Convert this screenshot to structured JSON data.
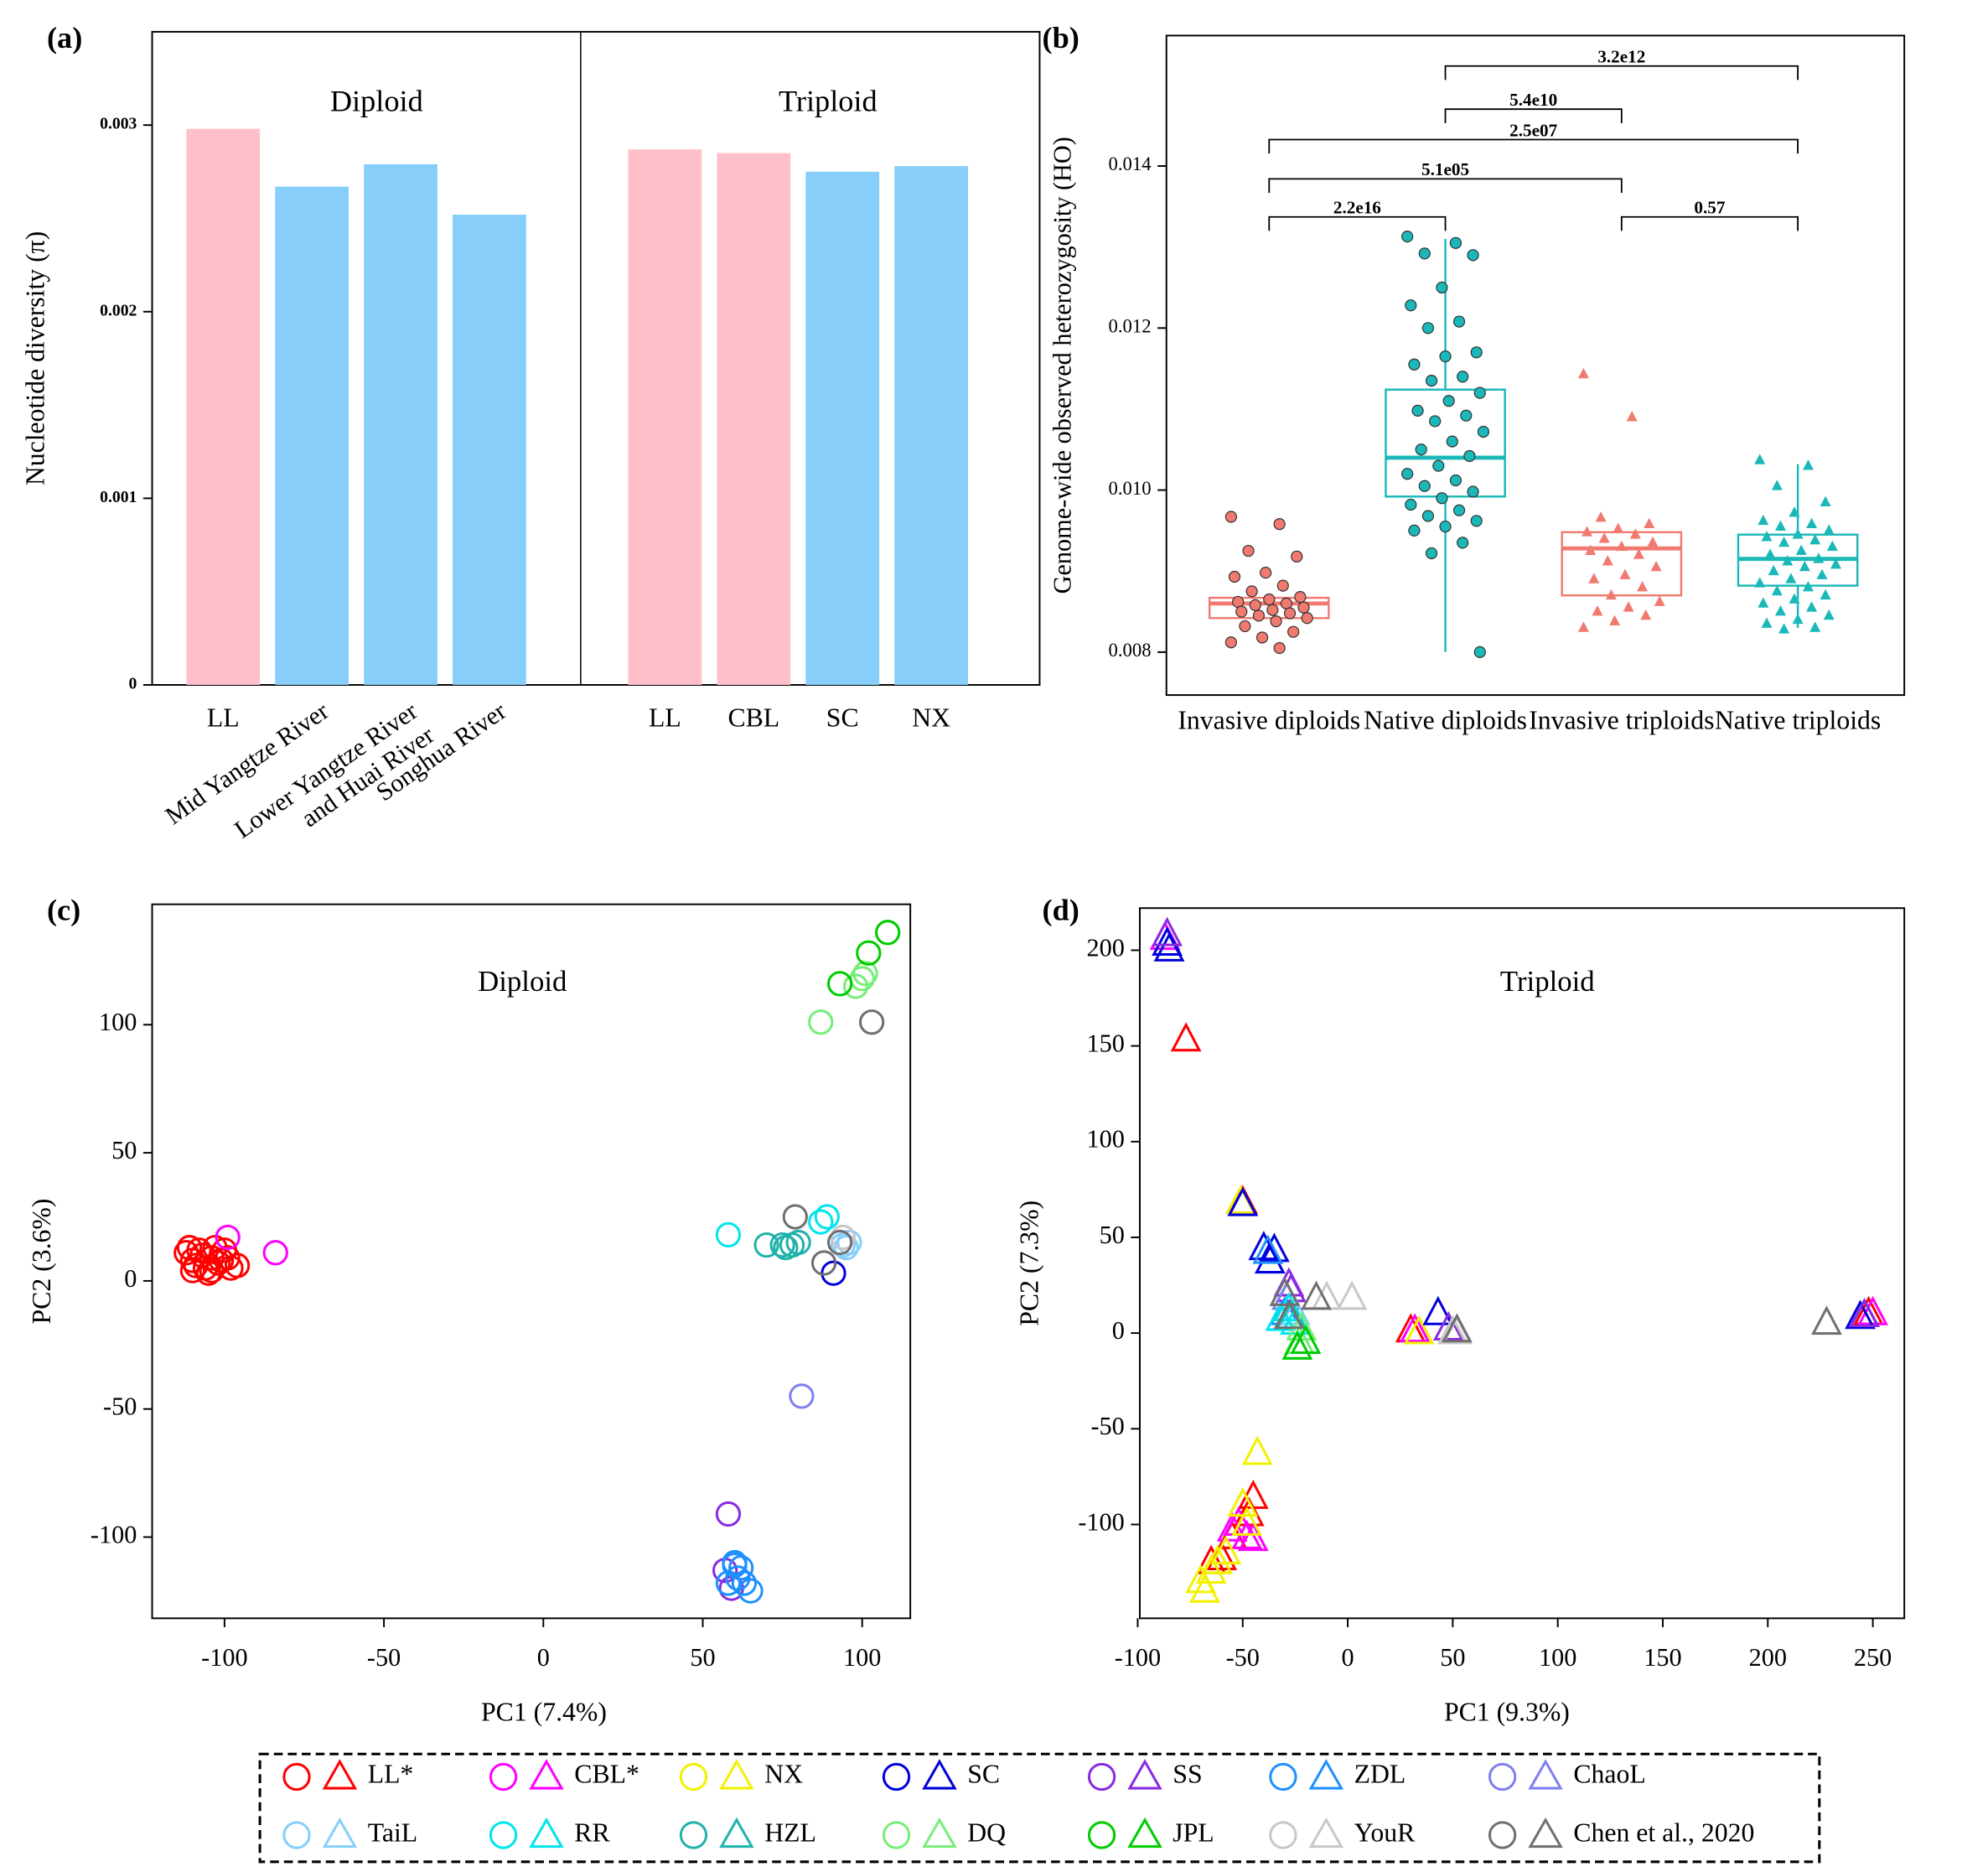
{
  "chart_data": [
    {
      "type": "grouped_bar",
      "panel_label": "(a)",
      "y_label": "Nucleotide diversity (π)",
      "ylim": [
        0,
        0.0035
      ],
      "yticks": [
        0,
        0.001,
        0.002,
        0.003
      ],
      "groups": [
        {
          "name": "Diploid",
          "categories": [
            "LL",
            "Mid Yangtze River",
            "Lower Yangtze River\nand Huai River",
            "Songhua River"
          ],
          "values": [
            0.00298,
            0.00267,
            0.00279,
            0.00252
          ],
          "colors": [
            "#ffc0cb",
            "#87cefa",
            "#87cefa",
            "#87cefa"
          ]
        },
        {
          "name": "Triploid",
          "categories": [
            "LL",
            "CBL",
            "SC",
            "NX"
          ],
          "values": [
            0.00287,
            0.00285,
            0.00275,
            0.00278
          ],
          "colors": [
            "#ffc0cb",
            "#ffc0cb",
            "#87cefa",
            "#87cefa"
          ]
        }
      ]
    },
    {
      "type": "box",
      "panel_label": "(b)",
      "y_label": "Genome-wide observed heterozygosity (HO)",
      "ylim": [
        0.00747,
        0.01561
      ],
      "yticks": [
        0.008,
        {
          "value": 0.01,
          "label": "0.010"
        },
        0.012,
        0.014
      ],
      "categories": [
        "Invasive diploids",
        "Native diploids",
        "Invasive triploids",
        "Native triploids"
      ],
      "series": [
        {
          "color": "#f07a70",
          "marker": "circle",
          "box": {
            "whisker_low": 0.00842,
            "q1": 0.00842,
            "median": 0.0086,
            "q3": 0.00867,
            "whisker_high": 0.00867
          },
          "points": [
            0.00967,
            0.00958,
            0.00925,
            0.00918,
            0.00898,
            0.00893,
            0.00882,
            0.00875,
            0.00868,
            0.00865,
            0.00862,
            0.0086,
            0.00858,
            0.00855,
            0.00852,
            0.0085,
            0.00848,
            0.00845,
            0.00842,
            0.00838,
            0.00832,
            0.00825,
            0.00818,
            0.00812,
            0.00805
          ]
        },
        {
          "color": "#1ab8b8",
          "marker": "circle",
          "box": {
            "whisker_low": 0.008,
            "q1": 0.00992,
            "median": 0.0104,
            "q3": 0.01124,
            "whisker_high": 0.0131
          },
          "points": [
            0.01313,
            0.01305,
            0.01292,
            0.0129,
            0.0125,
            0.01228,
            0.01208,
            0.012,
            0.0117,
            0.01165,
            0.01155,
            0.0114,
            0.01135,
            0.0112,
            0.0111,
            0.01098,
            0.01092,
            0.01085,
            0.01072,
            0.0106,
            0.0105,
            0.01042,
            0.0103,
            0.0102,
            0.01012,
            0.01005,
            0.00998,
            0.0099,
            0.00982,
            0.00975,
            0.00968,
            0.00962,
            0.00955,
            0.0095,
            0.00935,
            0.00922,
            0.008
          ]
        },
        {
          "color": "#f07a70",
          "marker": "triangle",
          "box": {
            "whisker_low": 0.0087,
            "q1": 0.0087,
            "median": 0.00928,
            "q3": 0.00948,
            "whisker_high": 0.00948
          },
          "points": [
            0.01143,
            0.0109,
            0.00966,
            0.00958,
            0.00952,
            0.00948,
            0.00945,
            0.0094,
            0.00935,
            0.0093,
            0.00925,
            0.0092,
            0.00912,
            0.00905,
            0.00895,
            0.0089,
            0.0088,
            0.0087,
            0.00862,
            0.00855,
            0.0085,
            0.00845,
            0.00838,
            0.0083
          ]
        },
        {
          "color": "#1ab8b8",
          "marker": "triangle",
          "box": {
            "whisker_low": 0.0083,
            "q1": 0.00882,
            "median": 0.00915,
            "q3": 0.00945,
            "whisker_high": 0.01032
          },
          "points": [
            0.01037,
            0.0103,
            0.01005,
            0.00985,
            0.00972,
            0.00962,
            0.00958,
            0.00955,
            0.0095,
            0.00945,
            0.00942,
            0.00938,
            0.00935,
            0.0093,
            0.00925,
            0.0092,
            0.00915,
            0.00912,
            0.00908,
            0.00905,
            0.009,
            0.00895,
            0.0089,
            0.00885,
            0.0088,
            0.00875,
            0.0087,
            0.00865,
            0.0086,
            0.00855,
            0.0085,
            0.00845,
            0.0084,
            0.00835,
            0.0083,
            0.00828
          ]
        }
      ],
      "comparisons": [
        {
          "groups": [
            0,
            1
          ],
          "label": "2.2e16"
        },
        {
          "groups": [
            2,
            3
          ],
          "label": "0.57"
        },
        {
          "groups": [
            0,
            2
          ],
          "label": "5.1e05"
        },
        {
          "groups": [
            0,
            3
          ],
          "label": "2.5e07"
        },
        {
          "groups": [
            1,
            2
          ],
          "label": "5.4e10"
        },
        {
          "groups": [
            1,
            3
          ],
          "label": "3.2e12"
        }
      ]
    },
    {
      "type": "scatter",
      "panel_label": "(c)",
      "annotation": "Diploid",
      "marker": "circle",
      "x_label": "PC1 (7.4%)",
      "y_label": "PC2 (3.6%)",
      "xlim": [
        -122.7,
        115.1
      ],
      "ylim": [
        -131.7,
        147
      ],
      "xticks": [
        -100,
        -50,
        0,
        50,
        100
      ],
      "yticks": [
        -100,
        -50,
        0,
        50,
        100
      ],
      "series": [
        {
          "x": [
            -112,
            -110,
            -108,
            -106,
            -104,
            -102,
            -100,
            -98,
            -96,
            -110,
            -107,
            -103,
            -109,
            -105,
            -101,
            -99,
            -111,
            -104
          ],
          "y": [
            11,
            8,
            12,
            5,
            9,
            7,
            12,
            5,
            6,
            4,
            10,
            13,
            6,
            3,
            8,
            9,
            13,
            4
          ]
        },
        {
          "x": [
            -99,
            -84
          ],
          "y": [
            17,
            11
          ]
        },
        {
          "x": [],
          "y": []
        },
        {
          "x": [
            91
          ],
          "y": [
            3
          ]
        },
        {
          "x": [
            58,
            57,
            59
          ],
          "y": [
            -91,
            -113,
            -120
          ]
        },
        {
          "x": [
            60,
            62,
            61,
            63,
            58,
            65,
            60
          ],
          "y": [
            -110,
            -112,
            -116,
            -118,
            -118,
            -121,
            -111
          ]
        },
        {
          "x": [
            81
          ],
          "y": [
            -45
          ]
        },
        {
          "x": [
            94,
            96,
            95
          ],
          "y": [
            14,
            15,
            13
          ]
        },
        {
          "x": [
            58,
            87,
            89
          ],
          "y": [
            18,
            23,
            25
          ]
        },
        {
          "x": [
            70,
            75,
            78,
            80,
            76
          ],
          "y": [
            14,
            14,
            14,
            15,
            13
          ]
        },
        {
          "x": [
            87,
            98,
            100,
            101
          ],
          "y": [
            101,
            115,
            118,
            120
          ]
        },
        {
          "x": [
            93,
            102,
            108
          ],
          "y": [
            116,
            128,
            136
          ]
        },
        {
          "x": [
            94
          ],
          "y": [
            17
          ]
        },
        {
          "x": [
            103,
            79,
            88,
            93
          ],
          "y": [
            101,
            25,
            7,
            15
          ]
        }
      ]
    },
    {
      "type": "scatter",
      "panel_label": "(d)",
      "annotation": "Triploid",
      "marker": "triangle",
      "x_label": "PC1 (9.3%)",
      "y_label": "PC2 (7.3%)",
      "xlim": [
        -99,
        265
      ],
      "ylim": [
        -149,
        222
      ],
      "xticks": [
        -100,
        -50,
        0,
        50,
        100,
        150,
        200,
        250
      ],
      "yticks": [
        -100,
        -50,
        0,
        50,
        100,
        150,
        200
      ],
      "series": [
        {
          "x": [
            -77,
            -50,
            -45,
            -65,
            -55,
            30,
            -47,
            -60,
            248
          ],
          "y": [
            153,
            68,
            -86,
            -120,
            -107,
            1,
            -95,
            -118,
            10
          ]
        },
        {
          "x": [
            -87,
            -48,
            -52,
            32,
            250,
            -55,
            -45
          ],
          "y": [
            206,
            -107,
            -100,
            1,
            10,
            -103,
            -108
          ]
        },
        {
          "x": [
            -51,
            -43,
            -68,
            -62,
            -58,
            -50,
            -70,
            -65,
            34,
            -48
          ],
          "y": [
            68,
            -63,
            -135,
            -120,
            -115,
            -90,
            -130,
            -125,
            0,
            -100
          ]
        },
        {
          "x": [
            -86,
            -85,
            -40,
            -35,
            -37,
            43,
            244,
            246,
            -50
          ],
          "y": [
            203,
            200,
            44,
            43,
            37,
            10,
            8,
            9,
            67
          ]
        },
        {
          "x": [
            -86,
            -28,
            -27,
            48,
            246
          ],
          "y": [
            208,
            25,
            22,
            2,
            9
          ]
        },
        {
          "x": [
            -38,
            -30
          ],
          "y": [
            42,
            10
          ]
        },
        {
          "x": [
            -29
          ],
          "y": [
            18
          ]
        },
        {
          "x": [
            -25
          ],
          "y": [
            10
          ]
        },
        {
          "x": [
            -32,
            -28,
            -25
          ],
          "y": [
            7,
            12,
            5
          ]
        },
        {
          "x": [
            -27
          ],
          "y": [
            8
          ]
        },
        {
          "x": [
            -23,
            -22
          ],
          "y": [
            -5,
            2
          ]
        },
        {
          "x": [
            -20,
            -24
          ],
          "y": [
            -5,
            -8
          ]
        },
        {
          "x": [
            -10,
            2,
            50,
            52
          ],
          "y": [
            18,
            18,
            0,
            0
          ]
        },
        {
          "x": [
            -30,
            -15,
            -28,
            52,
            228
          ],
          "y": [
            20,
            18,
            8,
            1,
            5
          ]
        }
      ]
    }
  ],
  "legend": [
    {
      "name": "LL*",
      "color": "#ff0000"
    },
    {
      "name": "CBL*",
      "color": "#ff00ff"
    },
    {
      "name": "NX",
      "color": "#f2f200"
    },
    {
      "name": "SC",
      "color": "#0000dd"
    },
    {
      "name": "SS",
      "color": "#8a2be2"
    },
    {
      "name": "ZDL",
      "color": "#1e90ff"
    },
    {
      "name": "ChaoL",
      "color": "#8080f0"
    },
    {
      "name": "TaiL",
      "color": "#87cefa"
    },
    {
      "name": "RR",
      "color": "#00e5ee"
    },
    {
      "name": "HZL",
      "color": "#20b2aa"
    },
    {
      "name": "DQ",
      "color": "#77ee77"
    },
    {
      "name": "JPL",
      "color": "#00cc00"
    },
    {
      "name": "YouR",
      "color": "#c8c8c8"
    },
    {
      "name": "Chen et al., 2020",
      "color": "#707070"
    }
  ]
}
